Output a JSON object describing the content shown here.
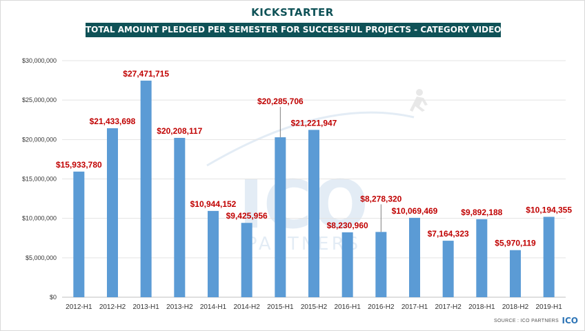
{
  "brand": {
    "name": "KICKSTARTER",
    "color": "#0f5257"
  },
  "title": "TOTAL AMOUNT PLEDGED PER SEMESTER FOR SUCCESSFUL PROJECTS - CATEGORY VIDEO GAMES",
  "watermark": {
    "main": "ICO",
    "sub": "PARTNERS"
  },
  "source": "SOURCE : ICO PARTNERS",
  "corner_logo": "ICO",
  "colors": {
    "bar": "#5b9bd5",
    "label": "#c00000",
    "title_bg": "#0f5257",
    "grid": "#e3e3e3"
  },
  "chart_data": {
    "type": "bar",
    "title": "TOTAL AMOUNT PLEDGED PER SEMESTER FOR SUCCESSFUL PROJECTS - CATEGORY VIDEO GAMES",
    "xlabel": "",
    "ylabel": "",
    "ylim": [
      0,
      30000000
    ],
    "yticks": [
      0,
      5000000,
      10000000,
      15000000,
      20000000,
      25000000,
      30000000
    ],
    "ytick_labels": [
      "$0",
      "$5,000,000",
      "$10,000,000",
      "$15,000,000",
      "$20,000,000",
      "$25,000,000",
      "$30,000,000"
    ],
    "categories": [
      "2012-H1",
      "2012-H2",
      "2013-H1",
      "2013-H2",
      "2014-H1",
      "2014-H2",
      "2015-H1",
      "2015-H2",
      "2016-H1",
      "2016-H2",
      "2017-H1",
      "2017-H2",
      "2018-H1",
      "2018-H2",
      "2019-H1"
    ],
    "values": [
      15933780,
      21433698,
      27471715,
      20208117,
      10944152,
      9425956,
      20285706,
      21221947,
      8230960,
      8278320,
      10069469,
      7164323,
      9892188,
      5970119,
      10194355
    ],
    "data_labels": [
      "$15,933,780",
      "$21,433,698",
      "$27,471,715",
      "$20,208,117",
      "$10,944,152",
      "$9,425,956",
      "$20,285,706",
      "$21,221,947",
      "$8,230,960",
      "$8,278,320",
      "$10,069,469",
      "$7,164,323",
      "$9,892,188",
      "$5,970,119",
      "$10,194,355"
    ],
    "grid": true,
    "legend": "none"
  }
}
